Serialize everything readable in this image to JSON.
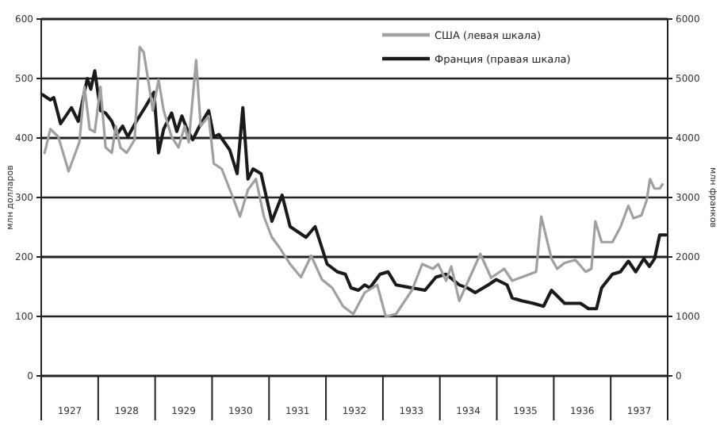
{
  "chart_data": {
    "type": "line",
    "ylabel": "млн долларов",
    "y2label": "млн франков",
    "xlim": [
      1927,
      1938
    ],
    "xticks": [
      {
        "value": 1927,
        "label": null
      },
      {
        "value": 1927.5,
        "label": "1927"
      },
      {
        "value": 1928,
        "label": null
      },
      {
        "value": 1928.5,
        "label": "1928"
      },
      {
        "value": 1929,
        "label": null
      },
      {
        "value": 1929.5,
        "label": "1929"
      },
      {
        "value": 1930,
        "label": null
      },
      {
        "value": 1930.5,
        "label": "1930"
      },
      {
        "value": 1931,
        "label": null
      },
      {
        "value": 1931.5,
        "label": "1931"
      },
      {
        "value": 1932,
        "label": null
      },
      {
        "value": 1932.5,
        "label": "1932"
      },
      {
        "value": 1933,
        "label": null
      },
      {
        "value": 1933.5,
        "label": "1933"
      },
      {
        "value": 1934,
        "label": null
      },
      {
        "value": 1934.5,
        "label": "1934"
      },
      {
        "value": 1935,
        "label": null
      },
      {
        "value": 1935.5,
        "label": "1935"
      },
      {
        "value": 1936,
        "label": null
      },
      {
        "value": 1936.5,
        "label": "1936"
      },
      {
        "value": 1937,
        "label": null
      },
      {
        "value": 1937.5,
        "label": "1937"
      },
      {
        "value": 1938,
        "label": null
      }
    ],
    "ylim": [
      0,
      600
    ],
    "yticks": [
      0,
      100,
      200,
      300,
      400,
      500,
      600
    ],
    "y2lim": [
      0,
      6000
    ],
    "y2ticks": [
      0,
      1000,
      2000,
      3000,
      4000,
      5000,
      6000
    ],
    "grid": "y",
    "legend": "top right",
    "line_style": "solid",
    "marker": "none",
    "series": [
      {
        "name": "США (левая шкала)",
        "color": "#a0a0a0",
        "x": [
          1927.06,
          1927.16,
          1927.3,
          1927.48,
          1927.67,
          1927.76,
          1927.85,
          1927.94,
          1928.04,
          1928.13,
          1928.24,
          1928.31,
          1928.39,
          1928.5,
          1928.64,
          1928.73,
          1928.8,
          1928.89,
          1928.96,
          1929.06,
          1929.15,
          1929.29,
          1929.41,
          1929.52,
          1929.59,
          1929.72,
          1929.8,
          1929.94,
          1930.03,
          1930.17,
          1930.35,
          1930.49,
          1930.63,
          1930.77,
          1930.91,
          1931.05,
          1931.19,
          1931.37,
          1931.56,
          1931.74,
          1931.93,
          1932.11,
          1932.3,
          1932.48,
          1932.68,
          1932.9,
          1933.05,
          1933.23,
          1933.51,
          1933.69,
          1933.88,
          1933.97,
          1934.11,
          1934.2,
          1934.34,
          1934.71,
          1934.9,
          1935.13,
          1935.27,
          1935.55,
          1935.69,
          1935.78,
          1935.96,
          1936.06,
          1936.19,
          1936.38,
          1936.56,
          1936.66,
          1936.73,
          1936.84,
          1937.03,
          1937.17,
          1937.31,
          1937.4,
          1937.54,
          1937.63,
          1937.69,
          1937.77,
          1937.86,
          1937.91
        ],
        "values": [
          375,
          415,
          402,
          344,
          393,
          486,
          415,
          410,
          486,
          384,
          375,
          420,
          384,
          375,
          397,
          553,
          544,
          490,
          446,
          498,
          446,
          402,
          384,
          420,
          393,
          531,
          420,
          437,
          357,
          348,
          304,
          268,
          313,
          331,
          268,
          233,
          215,
          188,
          166,
          202,
          162,
          148,
          117,
          104,
          140,
          153,
          100,
          104,
          144,
          188,
          180,
          188,
          160,
          184,
          126,
          205,
          165,
          180,
          160,
          170,
          175,
          268,
          197,
          180,
          190,
          195,
          175,
          180,
          260,
          225,
          225,
          250,
          286,
          265,
          270,
          295,
          331,
          315,
          315,
          322
        ]
      },
      {
        "name": "Франция (правая шкала)",
        "color": "#1a1a1a",
        "axis": "y2",
        "x": [
          1927.02,
          1927.16,
          1927.22,
          1927.34,
          1927.53,
          1927.65,
          1927.81,
          1927.87,
          1927.94,
          1928.04,
          1928.13,
          1928.24,
          1928.33,
          1928.43,
          1928.52,
          1928.67,
          1928.82,
          1928.98,
          1929.06,
          1929.15,
          1929.29,
          1929.38,
          1929.47,
          1929.56,
          1929.66,
          1929.78,
          1929.94,
          1930.03,
          1930.12,
          1930.31,
          1930.44,
          1930.54,
          1930.63,
          1930.72,
          1930.86,
          1931.05,
          1931.23,
          1931.37,
          1931.51,
          1931.65,
          1931.81,
          1932.02,
          1932.2,
          1932.34,
          1932.44,
          1932.57,
          1932.68,
          1932.77,
          1932.95,
          1933.09,
          1933.23,
          1933.51,
          1933.74,
          1933.93,
          1934.11,
          1934.34,
          1934.48,
          1934.62,
          1934.85,
          1934.99,
          1935.18,
          1935.27,
          1935.45,
          1935.64,
          1935.82,
          1935.96,
          1936.19,
          1936.47,
          1936.61,
          1936.75,
          1936.84,
          1937.03,
          1937.17,
          1937.31,
          1937.44,
          1937.58,
          1937.68,
          1937.77,
          1937.86,
          1937.97
        ],
        "values": [
          4730,
          4640,
          4680,
          4240,
          4510,
          4280,
          5000,
          4820,
          5130,
          4460,
          4420,
          4280,
          4060,
          4200,
          4020,
          4280,
          4510,
          4770,
          3750,
          4150,
          4420,
          4110,
          4370,
          4150,
          3970,
          4200,
          4460,
          4020,
          4060,
          3800,
          3400,
          4510,
          3310,
          3480,
          3400,
          2600,
          3040,
          2510,
          2420,
          2330,
          2510,
          1880,
          1750,
          1710,
          1480,
          1440,
          1530,
          1480,
          1710,
          1750,
          1530,
          1480,
          1440,
          1660,
          1710,
          1530,
          1480,
          1400,
          1530,
          1620,
          1530,
          1310,
          1260,
          1220,
          1170,
          1440,
          1220,
          1220,
          1130,
          1130,
          1480,
          1710,
          1750,
          1930,
          1750,
          1970,
          1840,
          1970,
          2370,
          2370
        ]
      }
    ]
  }
}
